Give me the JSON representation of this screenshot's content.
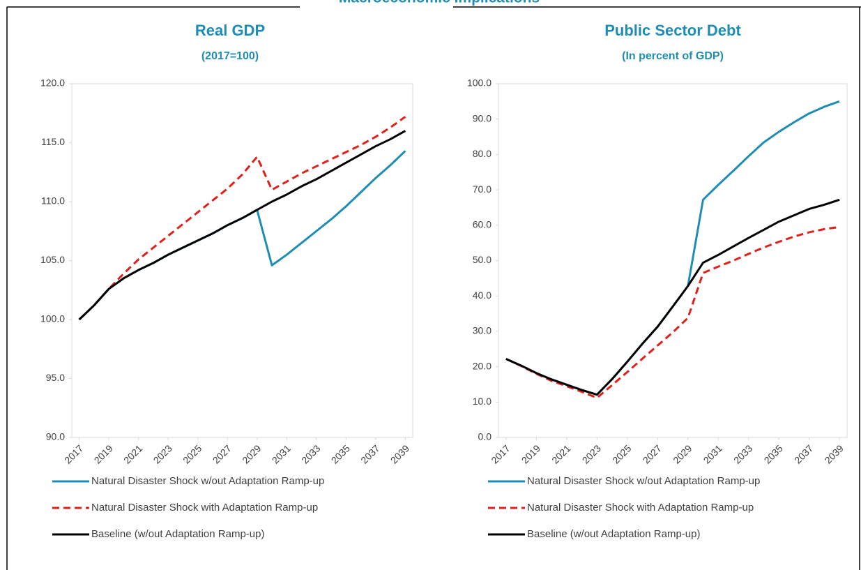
{
  "page_title": "Macroeconomic Implications",
  "chart_data": [
    {
      "type": "line",
      "title": "Real GDP",
      "subtitle": "(2017=100)",
      "x": [
        2017,
        2018,
        2019,
        2020,
        2021,
        2022,
        2023,
        2024,
        2025,
        2026,
        2027,
        2028,
        2029,
        2030,
        2031,
        2032,
        2033,
        2034,
        2035,
        2036,
        2037,
        2038,
        2039
      ],
      "xlim": [
        2016.5,
        2039.5
      ],
      "xticks": [
        2017,
        2019,
        2021,
        2023,
        2025,
        2027,
        2029,
        2031,
        2033,
        2035,
        2037,
        2039
      ],
      "ylim": [
        90,
        120
      ],
      "yticks": [
        {
          "value": 90,
          "label": "90.0"
        },
        {
          "value": 95,
          "label": "95.0"
        },
        {
          "value": 100,
          "label": "100.0"
        },
        {
          "value": 105,
          "label": "105.0"
        },
        {
          "value": 110,
          "label": "110.0"
        },
        {
          "value": 115,
          "label": "115.0"
        },
        {
          "value": 120,
          "label": "120.0"
        }
      ],
      "series": [
        {
          "name": "Natural Disaster Shock w/out Adaptation Ramp-up",
          "color": "#1f8db3",
          "dash": false,
          "values": [
            100,
            101.2,
            102.6,
            103.5,
            104.2,
            104.8,
            105.5,
            106.1,
            106.7,
            107.3,
            108.0,
            108.6,
            109.3,
            104.6,
            105.5,
            106.5,
            107.5,
            108.5,
            109.6,
            110.8,
            112.0,
            113.1,
            114.3
          ]
        },
        {
          "name": "Natural Disaster Shock with Adaptation Ramp-up",
          "color": "#e0201b",
          "dash": true,
          "values": [
            100,
            101.2,
            102.6,
            103.9,
            105.1,
            106.1,
            107.1,
            108.1,
            109.1,
            110.1,
            111.1,
            112.3,
            113.8,
            111.0,
            111.7,
            112.4,
            113.0,
            113.6,
            114.2,
            114.8,
            115.5,
            116.3,
            117.2
          ]
        },
        {
          "name": "Baseline (w/out Adaptation Ramp-up)",
          "color": "#000000",
          "dash": false,
          "values": [
            100,
            101.2,
            102.6,
            103.5,
            104.2,
            104.8,
            105.5,
            106.1,
            106.7,
            107.3,
            108.0,
            108.6,
            109.3,
            110.0,
            110.6,
            111.3,
            111.9,
            112.6,
            113.3,
            114.0,
            114.7,
            115.3,
            116.0
          ]
        }
      ]
    },
    {
      "type": "line",
      "title": "Public Sector Debt",
      "subtitle": "(In percent of GDP)",
      "x": [
        2017,
        2018,
        2019,
        2020,
        2021,
        2022,
        2023,
        2024,
        2025,
        2026,
        2027,
        2028,
        2029,
        2030,
        2031,
        2032,
        2033,
        2034,
        2035,
        2036,
        2037,
        2038,
        2039
      ],
      "xlim": [
        2016.5,
        2039.5
      ],
      "xticks": [
        2017,
        2019,
        2021,
        2023,
        2025,
        2027,
        2029,
        2031,
        2033,
        2035,
        2037,
        2039
      ],
      "ylim": [
        0,
        100
      ],
      "yticks": [
        {
          "value": 0,
          "label": "0.0"
        },
        {
          "value": 10,
          "label": "10.0"
        },
        {
          "value": 20,
          "label": "20.0"
        },
        {
          "value": 30,
          "label": "30.0"
        },
        {
          "value": 40,
          "label": "40.0"
        },
        {
          "value": 50,
          "label": "50.0"
        },
        {
          "value": 60,
          "label": "60.0"
        },
        {
          "value": 70,
          "label": "70.0"
        },
        {
          "value": 80,
          "label": "80.0"
        },
        {
          "value": 90,
          "label": "90.0"
        },
        {
          "value": 100,
          "label": "100.0"
        }
      ],
      "series": [
        {
          "name": "Natural Disaster Shock w/out Adaptation Ramp-up",
          "color": "#1f8db3",
          "dash": false,
          "values": [
            22.2,
            20.3,
            18.2,
            16.4,
            14.9,
            13.4,
            12.1,
            16.5,
            21.4,
            26.5,
            31.3,
            37.0,
            42.8,
            67.2,
            71.4,
            75.4,
            79.5,
            83.4,
            86.4,
            89.1,
            91.6,
            93.5,
            95.0
          ]
        },
        {
          "name": "Natural Disaster Shock with Adaptation Ramp-up",
          "color": "#e0201b",
          "dash": true,
          "values": [
            22.2,
            20.2,
            18.0,
            16.0,
            14.5,
            12.9,
            11.2,
            14.8,
            18.5,
            22.3,
            26.0,
            29.7,
            33.8,
            46.5,
            48.3,
            50.0,
            51.9,
            53.7,
            55.3,
            56.8,
            58.0,
            58.9,
            59.5
          ]
        },
        {
          "name": "Baseline (w/out Adaptation Ramp-up)",
          "color": "#000000",
          "dash": false,
          "values": [
            22.2,
            20.3,
            18.2,
            16.4,
            14.9,
            13.4,
            12.1,
            16.5,
            21.4,
            26.5,
            31.3,
            37.0,
            42.8,
            49.4,
            51.6,
            54.0,
            56.4,
            58.7,
            61.0,
            62.8,
            64.6,
            65.8,
            67.2
          ]
        }
      ]
    }
  ]
}
